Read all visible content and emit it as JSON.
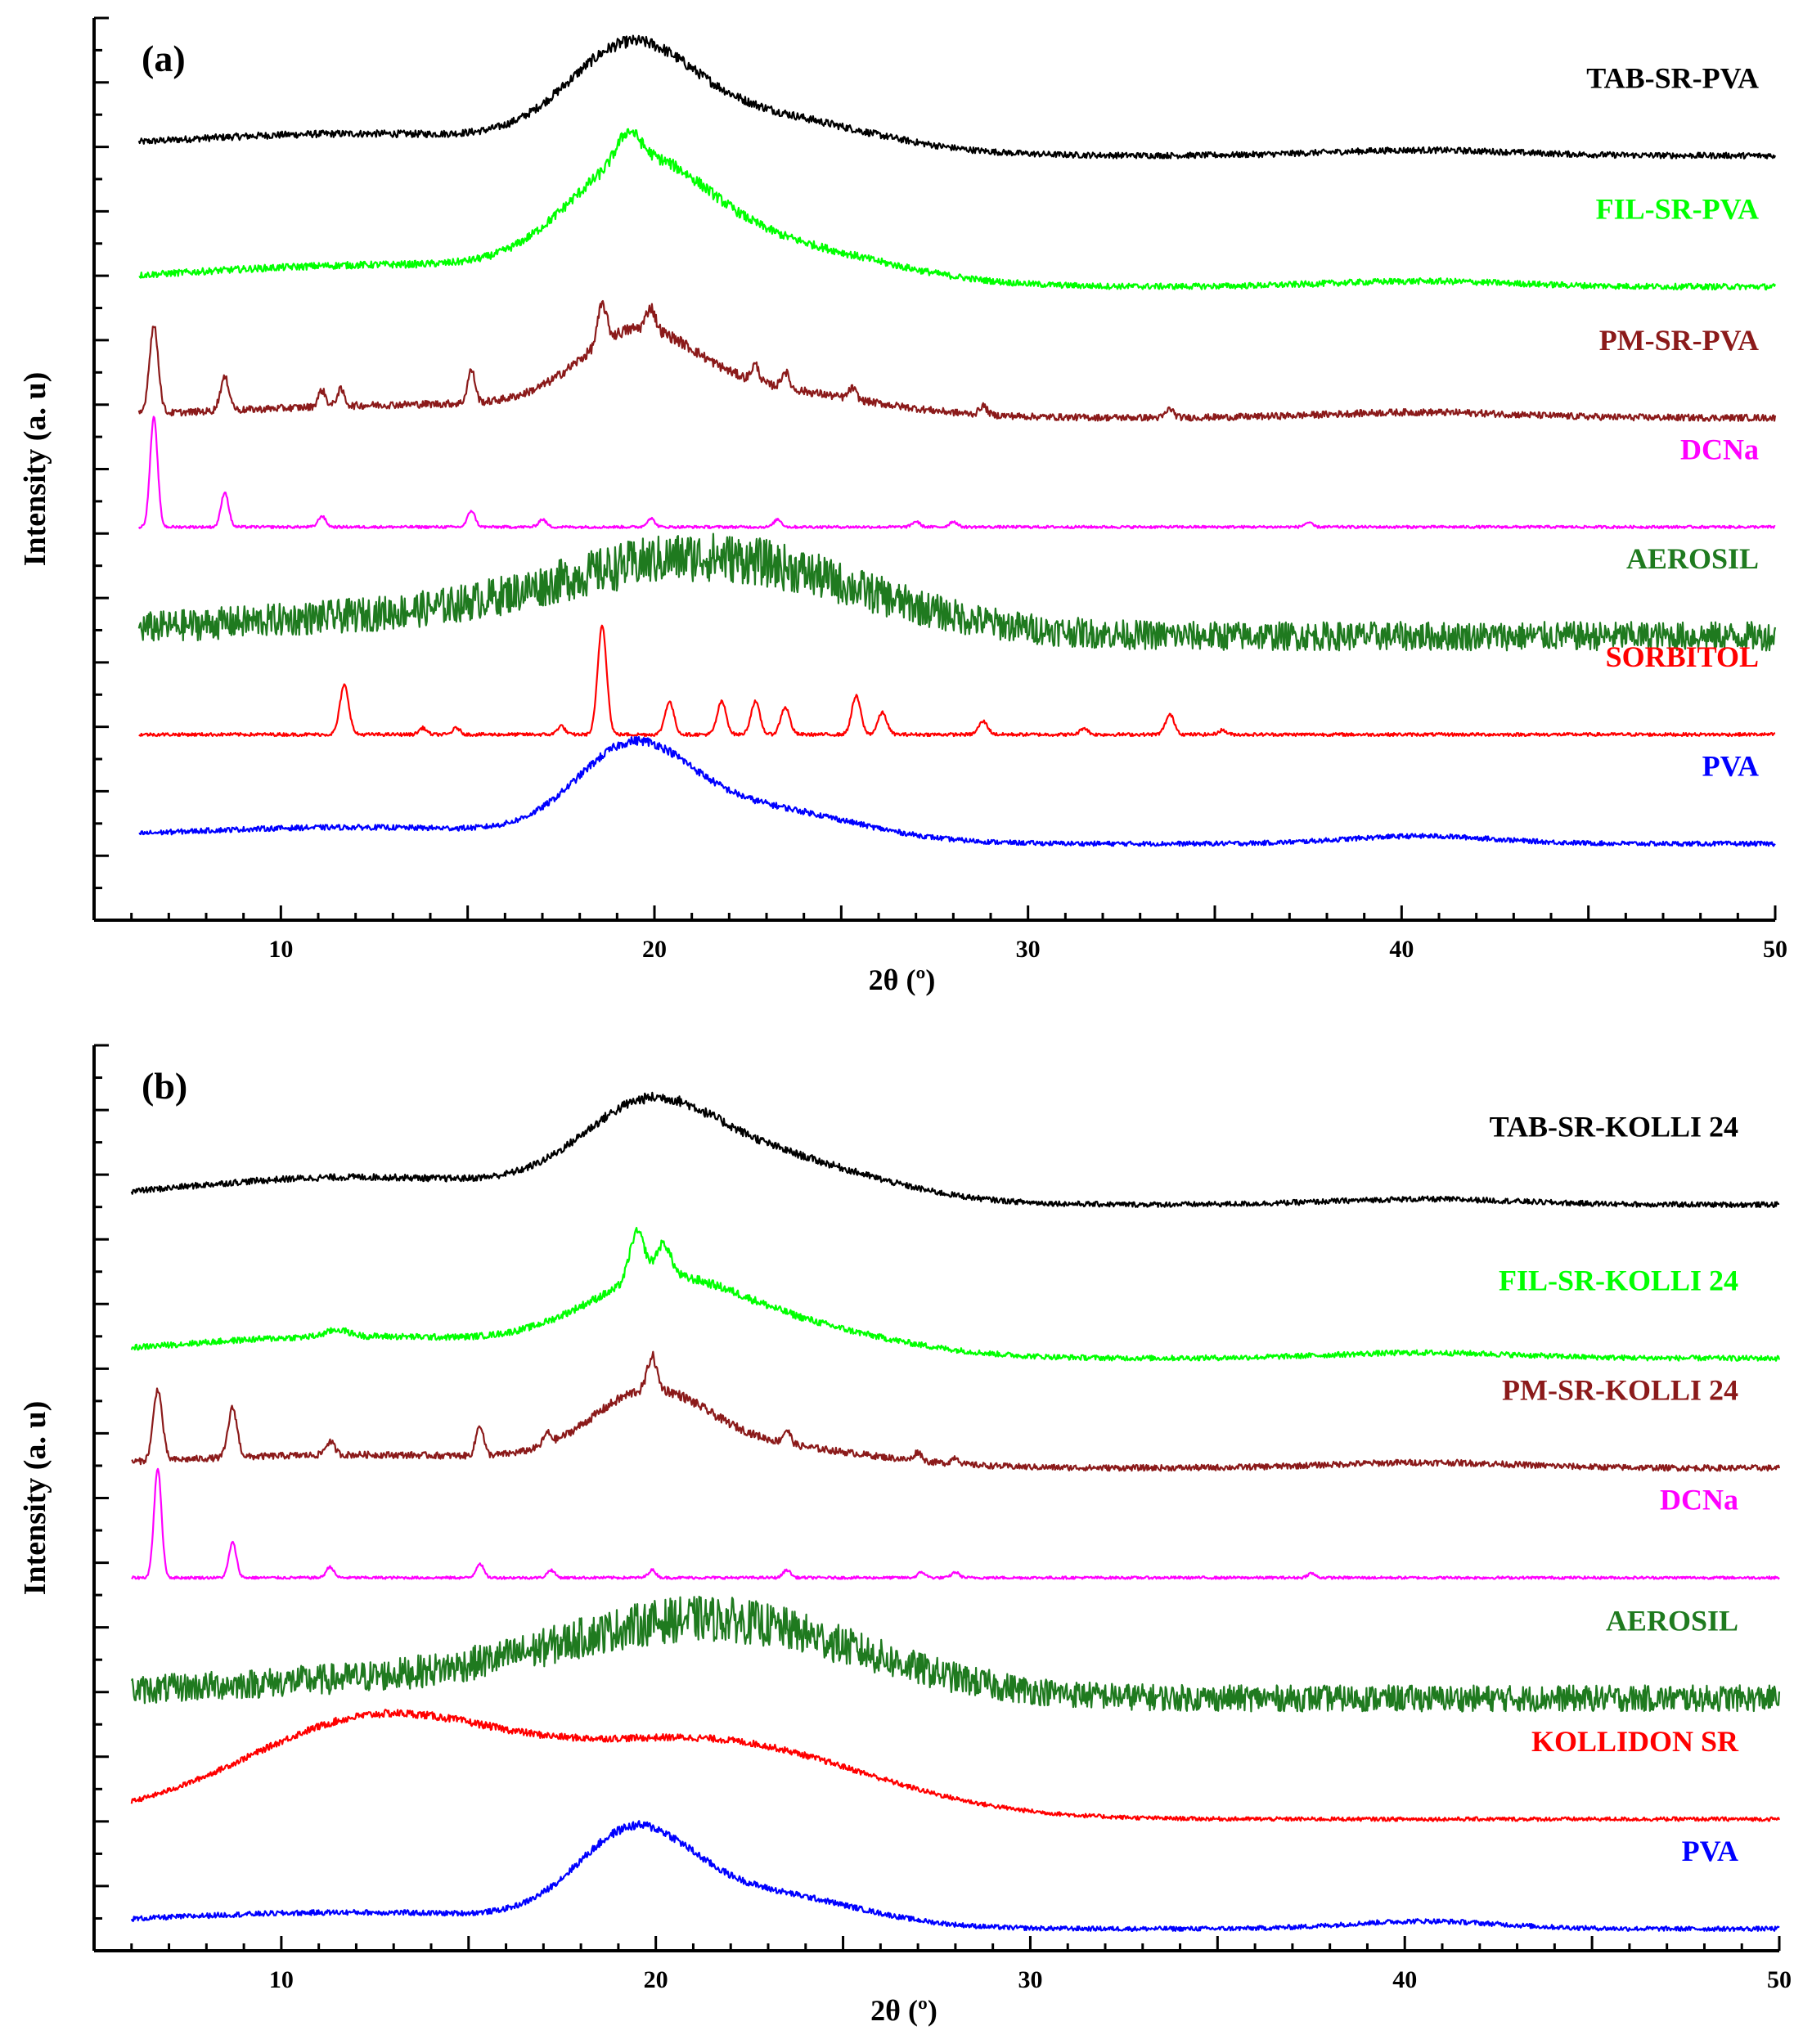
{
  "chart_data": [
    {
      "type": "line",
      "panel_label": "(a)",
      "xlabel": "2θ (º)",
      "ylabel": "Intensity (a. u)",
      "xlim": [
        5,
        50
      ],
      "xticks": [
        10,
        20,
        30,
        40,
        50
      ],
      "grid": false,
      "legend": "right",
      "series": [
        {
          "name": "TAB-SR-PVA",
          "color": "#000000",
          "offset": 7.0,
          "noise": 0.045,
          "broad": [
            [
              19.3,
              1.6,
              0.75
            ],
            [
              22.5,
              3.0,
              0.35
            ],
            [
              12,
              6,
              0.2
            ],
            [
              40.5,
              2.5,
              0.05
            ]
          ],
          "peaks": []
        },
        {
          "name": "FIL-SR-PVA",
          "color": "#00ff00",
          "offset": 5.8,
          "noise": 0.045,
          "broad": [
            [
              19.5,
              1.8,
              0.9
            ],
            [
              23.0,
              3.0,
              0.35
            ],
            [
              13,
              6,
              0.2
            ],
            [
              40.5,
              2.5,
              0.05
            ]
          ],
          "peaks": [
            [
              19.3,
              0.3,
              0.25
            ]
          ]
        },
        {
          "name": "PM-SR-PVA",
          "color": "#8b1a1a",
          "offset": 4.6,
          "noise": 0.05,
          "broad": [
            [
              19.5,
              1.5,
              0.6
            ],
            [
              22.5,
              3.0,
              0.25
            ],
            [
              14,
              5,
              0.12
            ],
            [
              40.5,
              2.5,
              0.05
            ]
          ],
          "peaks": [
            [
              6.6,
              0.12,
              0.8
            ],
            [
              8.5,
              0.12,
              0.3
            ],
            [
              11.1,
              0.1,
              0.15
            ],
            [
              11.6,
              0.1,
              0.15
            ],
            [
              15.1,
              0.1,
              0.3
            ],
            [
              18.6,
              0.12,
              0.35
            ],
            [
              19.9,
              0.12,
              0.2
            ],
            [
              22.7,
              0.1,
              0.15
            ],
            [
              23.5,
              0.1,
              0.15
            ],
            [
              25.3,
              0.1,
              0.1
            ],
            [
              28.8,
              0.1,
              0.08
            ],
            [
              33.8,
              0.1,
              0.08
            ]
          ]
        },
        {
          "name": "DCNa",
          "color": "#ff00ff",
          "offset": 3.6,
          "noise": 0.012,
          "broad": [],
          "peaks": [
            [
              6.6,
              0.1,
              1.0
            ],
            [
              8.5,
              0.1,
              0.32
            ],
            [
              11.1,
              0.1,
              0.1
            ],
            [
              15.1,
              0.1,
              0.15
            ],
            [
              17.0,
              0.1,
              0.07
            ],
            [
              19.9,
              0.1,
              0.08
            ],
            [
              23.3,
              0.1,
              0.07
            ],
            [
              27.0,
              0.1,
              0.05
            ],
            [
              28.0,
              0.1,
              0.05
            ],
            [
              37.5,
              0.1,
              0.04
            ]
          ]
        },
        {
          "name": "AEROSIL",
          "color": "#1f7a1f",
          "offset": 2.6,
          "noise": 0.22,
          "broad": [
            [
              21.5,
              4.0,
              0.7
            ],
            [
              12,
              5,
              0.15
            ]
          ],
          "peaks": []
        },
        {
          "name": "SORBITOL",
          "color": "#ff0000",
          "offset": 1.7,
          "noise": 0.015,
          "broad": [],
          "peaks": [
            [
              11.7,
              0.12,
              0.45
            ],
            [
              18.6,
              0.12,
              1.0
            ],
            [
              20.4,
              0.12,
              0.3
            ],
            [
              21.8,
              0.12,
              0.3
            ],
            [
              22.7,
              0.12,
              0.3
            ],
            [
              23.5,
              0.12,
              0.25
            ],
            [
              25.4,
              0.12,
              0.35
            ],
            [
              26.1,
              0.12,
              0.2
            ],
            [
              28.8,
              0.12,
              0.12
            ],
            [
              33.8,
              0.12,
              0.18
            ],
            [
              13.8,
              0.1,
              0.06
            ],
            [
              14.7,
              0.1,
              0.06
            ],
            [
              17.5,
              0.1,
              0.08
            ],
            [
              31.5,
              0.1,
              0.06
            ],
            [
              35.2,
              0.1,
              0.04
            ]
          ]
        },
        {
          "name": "PVA",
          "color": "#0000ff",
          "offset": 0.7,
          "noise": 0.035,
          "broad": [
            [
              19.4,
              1.5,
              0.75
            ],
            [
              22.8,
              2.5,
              0.3
            ],
            [
              12,
              6,
              0.15
            ],
            [
              40.5,
              2.0,
              0.07
            ]
          ],
          "peaks": []
        }
      ]
    },
    {
      "type": "line",
      "panel_label": "(b)",
      "xlabel": "2θ (º)",
      "ylabel": "Intensity (a. u)",
      "xlim": [
        5,
        50
      ],
      "xticks": [
        10,
        20,
        30,
        40,
        50
      ],
      "grid": false,
      "legend": "right",
      "series": [
        {
          "name": "TAB-SR-KOLLI 24",
          "color": "#000000",
          "offset": 6.8,
          "noise": 0.04,
          "broad": [
            [
              19.7,
              1.7,
              0.6
            ],
            [
              22.5,
              3.0,
              0.45
            ],
            [
              12,
              5,
              0.25
            ],
            [
              40.5,
              2.5,
              0.05
            ]
          ],
          "peaks": []
        },
        {
          "name": "FIL-SR-KOLLI 24",
          "color": "#00ff00",
          "offset": 5.4,
          "noise": 0.04,
          "broad": [
            [
              20.0,
              2.0,
              0.5
            ],
            [
              23.0,
              3.0,
              0.3
            ],
            [
              12,
              5,
              0.2
            ],
            [
              40.5,
              2.5,
              0.05
            ]
          ],
          "peaks": [
            [
              19.5,
              0.2,
              0.45
            ],
            [
              20.2,
              0.2,
              0.3
            ],
            [
              11.5,
              0.3,
              0.06
            ]
          ]
        },
        {
          "name": "PM-SR-KOLLI 24",
          "color": "#8b1a1a",
          "offset": 4.4,
          "noise": 0.045,
          "broad": [
            [
              19.8,
              1.5,
              0.55
            ],
            [
              22.5,
              3.0,
              0.2
            ],
            [
              12,
              5,
              0.12
            ],
            [
              40.5,
              2.5,
              0.05
            ]
          ],
          "peaks": [
            [
              6.7,
              0.12,
              0.65
            ],
            [
              8.7,
              0.12,
              0.45
            ],
            [
              11.3,
              0.12,
              0.12
            ],
            [
              15.3,
              0.1,
              0.28
            ],
            [
              17.1,
              0.1,
              0.1
            ],
            [
              19.9,
              0.12,
              0.3
            ],
            [
              23.5,
              0.1,
              0.12
            ],
            [
              27.0,
              0.1,
              0.08
            ],
            [
              28.0,
              0.1,
              0.06
            ]
          ]
        },
        {
          "name": "DCNa",
          "color": "#ff00ff",
          "offset": 3.4,
          "noise": 0.012,
          "broad": [],
          "peaks": [
            [
              6.7,
              0.1,
              1.0
            ],
            [
              8.7,
              0.1,
              0.32
            ],
            [
              11.3,
              0.1,
              0.1
            ],
            [
              15.3,
              0.1,
              0.13
            ],
            [
              17.2,
              0.1,
              0.07
            ],
            [
              19.9,
              0.1,
              0.07
            ],
            [
              23.5,
              0.1,
              0.07
            ],
            [
              27.1,
              0.1,
              0.05
            ],
            [
              28.0,
              0.1,
              0.05
            ],
            [
              37.5,
              0.1,
              0.04
            ]
          ]
        },
        {
          "name": "AEROSIL",
          "color": "#1f7a1f",
          "offset": 2.3,
          "noise": 0.2,
          "broad": [
            [
              21.5,
              4.0,
              0.7
            ],
            [
              12,
              5,
              0.15
            ]
          ],
          "peaks": []
        },
        {
          "name": "KOLLIDON SR",
          "color": "#ff0000",
          "offset": 1.2,
          "noise": 0.03,
          "broad": [
            [
              12.5,
              3.5,
              0.9
            ],
            [
              21.5,
              4.0,
              0.7
            ]
          ],
          "peaks": []
        },
        {
          "name": "PVA",
          "color": "#0000ff",
          "offset": 0.2,
          "noise": 0.035,
          "broad": [
            [
              19.4,
              1.5,
              0.75
            ],
            [
              22.8,
              2.5,
              0.3
            ],
            [
              12,
              6,
              0.15
            ],
            [
              40.5,
              2.0,
              0.07
            ]
          ],
          "peaks": []
        }
      ]
    }
  ]
}
